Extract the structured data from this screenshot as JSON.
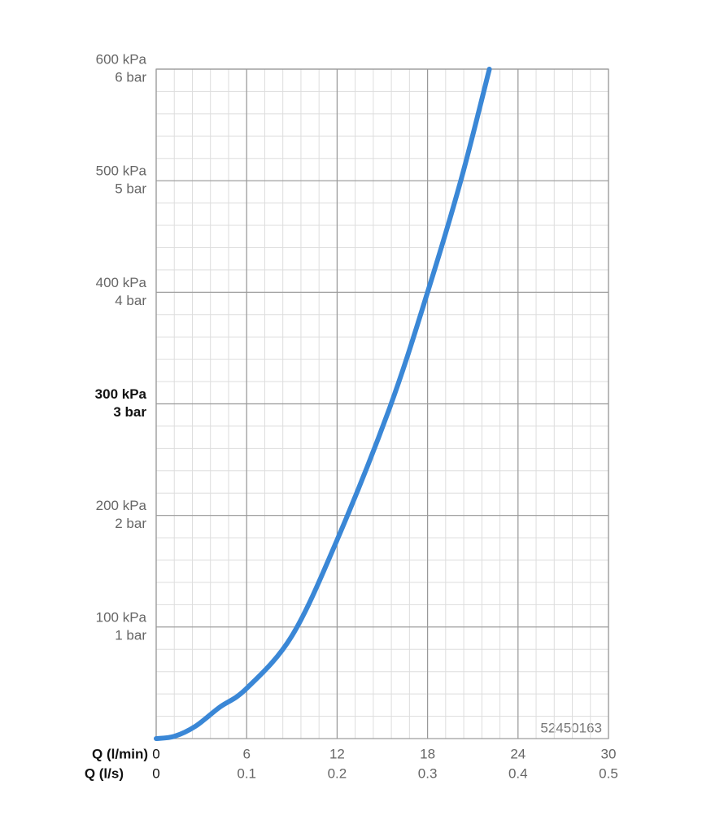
{
  "chart_data": {
    "type": "line",
    "annotation": "52450163",
    "xlabel": "Q (l/min)",
    "x2label": "Q (l/s)",
    "x": [
      0,
      1.2,
      2.6,
      4.2,
      6,
      9,
      12,
      15.5,
      18,
      20.2,
      22.1
    ],
    "series": [
      {
        "color": "#3a87d6",
        "values": [
          0,
          2,
          11,
          28,
          45,
          92,
          178,
          297,
          400,
          500,
          600
        ]
      }
    ],
    "xlim": [
      0,
      30
    ],
    "xticks": [
      0,
      6,
      12,
      18,
      24,
      30
    ],
    "x2lim": [
      0,
      0.5
    ],
    "x2ticks": [
      0,
      0.1,
      0.2,
      0.3,
      0.4,
      0.5
    ],
    "ylim": [
      0,
      600
    ],
    "yticks": [
      {
        "value": 100,
        "label": "100 kPa"
      },
      {
        "value": 200,
        "label": "200 kPa"
      },
      {
        "value": 300,
        "label": "300 kPa",
        "bold": true
      },
      {
        "value": 400,
        "label": "400 kPa"
      },
      {
        "value": 500,
        "label": "500 kPa"
      },
      {
        "value": 600,
        "label": "600 kPa"
      }
    ],
    "y2lim": [
      0,
      6
    ],
    "y2ticks": [
      {
        "value": 1,
        "label": "1 bar"
      },
      {
        "value": 2,
        "label": "2 bar"
      },
      {
        "value": 3,
        "label": "3 bar",
        "bold": true
      },
      {
        "value": 4,
        "label": "4 bar"
      },
      {
        "value": 5,
        "label": "5 bar"
      },
      {
        "value": 6,
        "label": "6 bar"
      }
    ],
    "grid": true,
    "minor_grid": true
  }
}
